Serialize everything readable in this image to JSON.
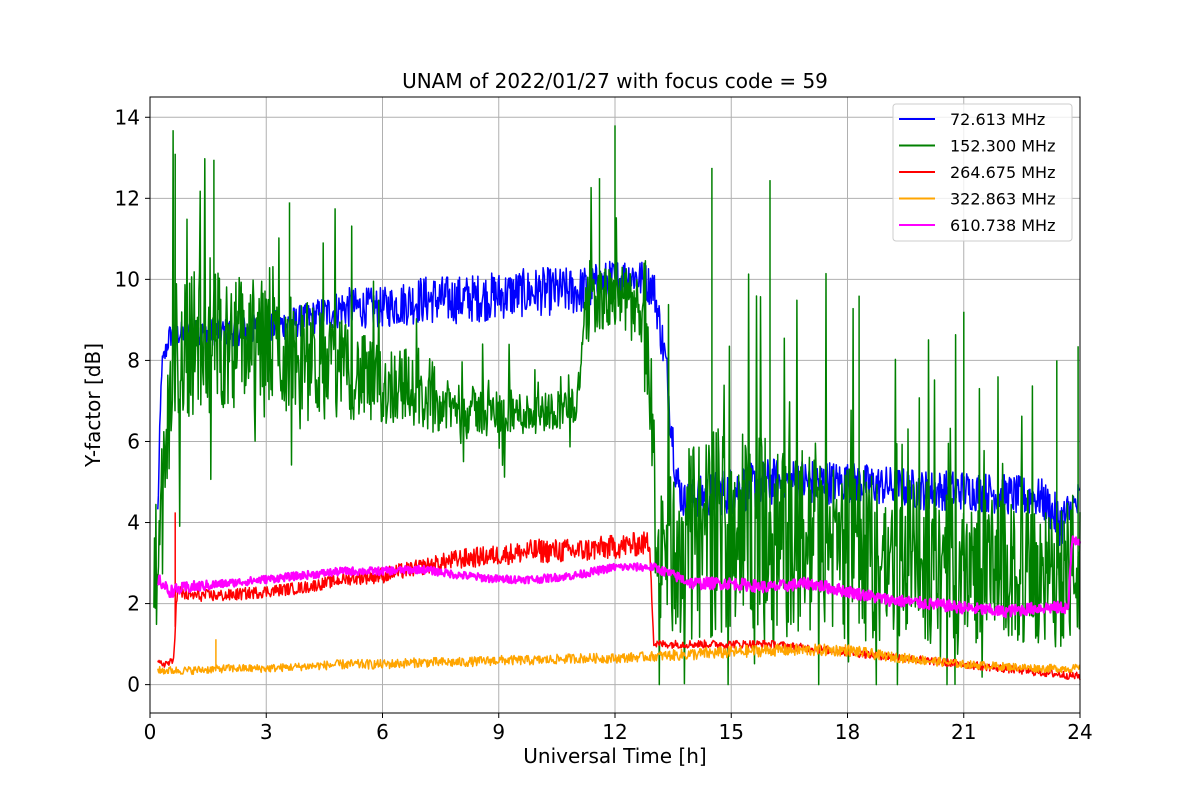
{
  "chart_data": {
    "type": "line",
    "title": "UNAM of 2022/01/27 with focus code = 59",
    "xlabel": "Universal Time [h]",
    "ylabel": "Y-factor [dB]",
    "xlim": [
      0,
      24
    ],
    "ylim": [
      -0.7,
      14.5
    ],
    "xticks": [
      0,
      3,
      6,
      9,
      12,
      15,
      18,
      21,
      24
    ],
    "yticks": [
      0,
      2,
      4,
      6,
      8,
      10,
      12,
      14
    ],
    "grid": true,
    "legend_position": "top-right",
    "series": [
      {
        "name": "  72.613 MHz",
        "color": "#0000ff",
        "x": [
          0.2,
          0.3,
          0.5,
          1,
          2,
          3,
          4,
          5,
          6,
          7,
          8,
          9,
          10,
          11,
          12,
          12.5,
          13,
          13.3,
          13.6,
          13.8,
          14,
          15,
          16,
          17,
          18,
          19,
          20,
          21,
          22,
          23,
          23.5,
          24
        ],
        "y": [
          4.2,
          7.8,
          8.6,
          8.7,
          8.7,
          8.8,
          9.0,
          9.3,
          9.3,
          9.5,
          9.5,
          9.6,
          9.7,
          9.7,
          10.0,
          10.1,
          9.8,
          8.0,
          5.0,
          4.5,
          4.6,
          4.8,
          5.0,
          5.0,
          5.0,
          4.9,
          4.8,
          4.8,
          4.7,
          4.6,
          4.0,
          4.5
        ],
        "amp": [
          0.4,
          0.3,
          0.3,
          0.3,
          0.35,
          0.4,
          0.4,
          0.5,
          0.5,
          0.6,
          0.6,
          0.6,
          0.6,
          0.6,
          0.5,
          0.5,
          0.5,
          0.6,
          0.6,
          0.5,
          0.5,
          0.6,
          0.6,
          0.6,
          0.5,
          0.5,
          0.5,
          0.5,
          0.5,
          0.5,
          0.6,
          0.6
        ]
      },
      {
        "name": "152.300 MHz",
        "color": "#008000",
        "x": [
          0.1,
          0.3,
          0.6,
          1,
          2,
          3,
          4,
          5,
          6,
          6.5,
          7,
          8,
          9,
          10,
          11,
          11.3,
          12,
          12.5,
          12.9,
          13.1,
          14,
          15,
          16,
          17,
          18,
          19,
          20,
          21,
          22,
          23,
          24
        ],
        "y": [
          2.5,
          4.0,
          8.0,
          8.5,
          8.5,
          8.4,
          8.0,
          7.8,
          7.3,
          7.5,
          7.0,
          6.8,
          6.7,
          6.7,
          6.9,
          9.5,
          9.5,
          9.5,
          7.5,
          3.0,
          3.5,
          4.0,
          3.5,
          3.5,
          3.3,
          3.0,
          3.0,
          2.8,
          2.8,
          2.5,
          3.0
        ],
        "amp": [
          1.5,
          1.8,
          2.0,
          1.9,
          1.7,
          1.6,
          1.5,
          1.2,
          1.0,
          1.0,
          0.7,
          0.6,
          0.6,
          0.5,
          0.5,
          0.8,
          0.8,
          0.8,
          1.2,
          2.0,
          2.5,
          2.7,
          2.5,
          2.3,
          2.2,
          2.0,
          2.0,
          1.8,
          1.8,
          1.7,
          2.0
        ],
        "peaks": [
          [
            0.65,
            13.1
          ],
          [
            1.65,
            12.95
          ],
          [
            3.6,
            11.9
          ],
          [
            11.6,
            12.5
          ],
          [
            12.0,
            13.8
          ],
          [
            14.5,
            12.75
          ],
          [
            16.0,
            12.45
          ],
          [
            18.3,
            9.6
          ],
          [
            21.0,
            9.2
          ],
          [
            23.4,
            8.0
          ],
          [
            23.95,
            8.35
          ]
        ]
      },
      {
        "name": "264.675 MHz",
        "color": "#ff0000",
        "x": [
          0.2,
          0.6,
          0.7,
          1,
          2,
          3,
          4,
          5,
          6,
          7,
          8,
          9,
          10,
          11,
          12,
          12.9,
          13.0,
          14,
          15,
          16,
          17,
          18,
          19,
          20,
          21,
          22,
          23,
          24
        ],
        "y": [
          0.5,
          0.55,
          2.3,
          2.2,
          2.2,
          2.3,
          2.4,
          2.6,
          2.7,
          2.9,
          3.1,
          3.2,
          3.3,
          3.3,
          3.4,
          3.5,
          1.0,
          1.0,
          1.0,
          1.0,
          0.9,
          0.8,
          0.7,
          0.6,
          0.5,
          0.4,
          0.3,
          0.2
        ],
        "amp": [
          0.1,
          0.1,
          0.2,
          0.15,
          0.15,
          0.15,
          0.15,
          0.15,
          0.2,
          0.2,
          0.25,
          0.25,
          0.3,
          0.3,
          0.3,
          0.3,
          0.1,
          0.1,
          0.1,
          0.1,
          0.1,
          0.1,
          0.1,
          0.1,
          0.1,
          0.1,
          0.1,
          0.1
        ],
        "peaks": [
          [
            0.65,
            4.25
          ]
        ]
      },
      {
        "name": "322.863 MHz",
        "color": "#ffa500",
        "x": [
          0.2,
          1,
          2,
          3,
          4,
          5,
          6,
          7,
          8,
          9,
          10,
          11,
          12,
          13,
          14,
          15,
          16,
          17,
          18,
          19,
          20,
          21,
          22,
          23,
          24
        ],
        "y": [
          0.35,
          0.35,
          0.4,
          0.4,
          0.45,
          0.5,
          0.5,
          0.55,
          0.55,
          0.6,
          0.6,
          0.65,
          0.65,
          0.7,
          0.75,
          0.8,
          0.85,
          0.85,
          0.85,
          0.7,
          0.6,
          0.5,
          0.45,
          0.4,
          0.4
        ],
        "amp": [
          0.1,
          0.1,
          0.1,
          0.1,
          0.1,
          0.12,
          0.12,
          0.12,
          0.12,
          0.12,
          0.12,
          0.12,
          0.12,
          0.12,
          0.15,
          0.15,
          0.15,
          0.15,
          0.15,
          0.12,
          0.12,
          0.1,
          0.1,
          0.1,
          0.1
        ],
        "peaks": [
          [
            1.7,
            1.12
          ]
        ]
      },
      {
        "name": "610.738 MHz",
        "color": "#ff00ff",
        "x": [
          0.2,
          0.5,
          1,
          2,
          3,
          4,
          5,
          6,
          7,
          8,
          9,
          10,
          11,
          12,
          13,
          14,
          15,
          16,
          17,
          18,
          19,
          20,
          21,
          22,
          23,
          23.7,
          23.8,
          24
        ],
        "y": [
          2.6,
          2.3,
          2.4,
          2.5,
          2.6,
          2.7,
          2.8,
          2.8,
          2.85,
          2.7,
          2.6,
          2.6,
          2.7,
          2.9,
          2.9,
          2.5,
          2.5,
          2.4,
          2.5,
          2.3,
          2.1,
          2.0,
          1.9,
          1.8,
          1.9,
          1.9,
          3.6,
          3.6
        ],
        "amp": [
          0.15,
          0.15,
          0.15,
          0.1,
          0.1,
          0.1,
          0.1,
          0.1,
          0.1,
          0.1,
          0.1,
          0.1,
          0.1,
          0.1,
          0.1,
          0.15,
          0.15,
          0.15,
          0.15,
          0.15,
          0.15,
          0.15,
          0.15,
          0.15,
          0.15,
          0.15,
          0.2,
          0.2
        ]
      }
    ]
  }
}
